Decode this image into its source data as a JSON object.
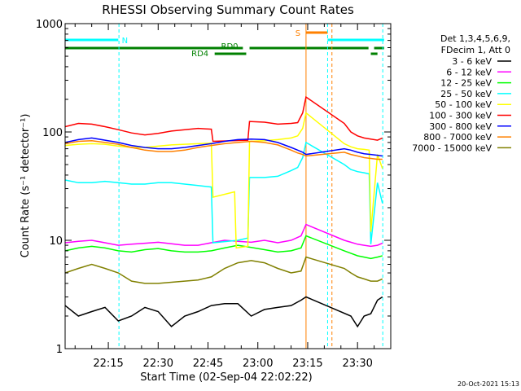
{
  "chart_data": {
    "type": "line",
    "title": "RHESSI Observing Summary Count Rates",
    "xlabel": "Start Time (02-Sep-04 22:02:22)",
    "ylabel": "Count Rate (s⁻¹ detector⁻¹)",
    "y_scale": "log",
    "ylim": [
      1,
      1000
    ],
    "xlim": [
      "22:02",
      "23:40"
    ],
    "y_ticks": [
      {
        "v": 1,
        "label": "1"
      },
      {
        "v": 10,
        "label": "10"
      },
      {
        "v": 100,
        "label": "100"
      },
      {
        "v": 1000,
        "label": "1000"
      }
    ],
    "x_ticks": [
      {
        "v": 13,
        "label": "22:15"
      },
      {
        "v": 28,
        "label": "22:30"
      },
      {
        "v": 43,
        "label": "22:45"
      },
      {
        "v": 58,
        "label": "23:00"
      },
      {
        "v": 73,
        "label": "23:15"
      },
      {
        "v": 88,
        "label": "23:30"
      }
    ],
    "legend_header": [
      "Det 1,3,4,5,6,9,",
      "FDecim 1, Att 0"
    ],
    "legend_position": "right",
    "series": [
      {
        "name": "3 - 6 keV",
        "color": "#000000",
        "x": [
          0,
          4,
          8,
          12,
          16,
          20,
          24,
          28,
          32,
          36,
          40,
          44,
          48,
          52,
          56,
          60,
          64,
          68,
          71,
          72.5,
          86,
          88,
          90,
          92,
          94,
          95.5
        ],
        "y": [
          2.5,
          2.0,
          2.2,
          2.4,
          1.8,
          2.0,
          2.4,
          2.2,
          1.6,
          2.0,
          2.2,
          2.5,
          2.6,
          2.6,
          2.0,
          2.3,
          2.4,
          2.5,
          2.8,
          3.0,
          2.0,
          1.6,
          2.0,
          2.1,
          2.8,
          3.0
        ]
      },
      {
        "name": "6 - 12 keV",
        "color": "#ff00ff",
        "x": [
          0,
          4,
          8,
          12,
          16,
          20,
          24,
          28,
          32,
          36,
          40,
          44,
          48,
          52,
          56,
          60,
          64,
          68,
          71,
          72.5,
          84,
          86,
          88,
          90,
          92,
          94,
          95.5
        ],
        "y": [
          9.5,
          9.8,
          10,
          9.5,
          9.0,
          9.2,
          9.4,
          9.6,
          9.3,
          9.0,
          9.0,
          9.5,
          10,
          9.8,
          9.6,
          10,
          9.5,
          10,
          11,
          14,
          10,
          9.6,
          9.2,
          9.0,
          8.8,
          9.0,
          9.4
        ]
      },
      {
        "name": "12 - 25 keV",
        "color": "#00ff00",
        "x": [
          0,
          4,
          8,
          12,
          16,
          20,
          24,
          28,
          32,
          36,
          40,
          44,
          48,
          52,
          56,
          60,
          64,
          68,
          71,
          72.5,
          84,
          86,
          88,
          90,
          92,
          94,
          95.5
        ],
        "y": [
          8.0,
          8.5,
          8.8,
          8.5,
          8.0,
          7.8,
          8.2,
          8.4,
          8.0,
          7.8,
          7.8,
          8.0,
          8.5,
          9.0,
          8.6,
          8.2,
          7.8,
          8.0,
          8.5,
          11,
          8.0,
          7.6,
          7.2,
          7.0,
          6.8,
          7.0,
          7.2
        ]
      },
      {
        "name": "25 - 50 keV",
        "color": "#00ffff",
        "x": [
          0,
          4,
          8,
          12,
          16,
          20,
          24,
          28,
          32,
          36,
          40,
          44,
          44.5,
          52,
          55,
          55.5,
          60,
          64,
          68,
          70,
          71.5,
          72.5,
          84,
          86,
          88,
          90,
          91.5,
          92,
          94,
          95.5
        ],
        "y": [
          36,
          34,
          34,
          35,
          34,
          33,
          33,
          34,
          34,
          33,
          32,
          31,
          9.5,
          10,
          10.5,
          38,
          38,
          39,
          44,
          47,
          58,
          80,
          50,
          45,
          43,
          42,
          41,
          9.2,
          34,
          22
        ]
      },
      {
        "name": "50 - 100 keV",
        "color": "#ffff00",
        "x": [
          0,
          4,
          8,
          12,
          16,
          20,
          24,
          28,
          32,
          36,
          40,
          44,
          44.5,
          51,
          51.5,
          55,
          55.5,
          60,
          64,
          68,
          70,
          71.5,
          72.5,
          84,
          86,
          88,
          90,
          91.5,
          92,
          94,
          95.5
        ],
        "y": [
          75,
          77,
          78,
          77,
          74,
          72,
          72,
          74,
          76,
          77,
          78,
          79,
          25,
          28,
          8.5,
          8.8,
          82,
          83,
          85,
          88,
          92,
          108,
          150,
          78,
          73,
          70,
          69,
          68,
          12,
          62,
          46
        ]
      },
      {
        "name": "100 - 300 keV",
        "color": "#ff0000",
        "x": [
          0,
          4,
          8,
          12,
          16,
          20,
          24,
          28,
          32,
          36,
          40,
          44,
          44.5,
          55,
          55.5,
          60,
          64,
          68,
          70,
          71.5,
          72.5,
          84,
          86,
          88,
          90,
          92,
          94,
          95.5
        ],
        "y": [
          112,
          120,
          118,
          112,
          105,
          98,
          94,
          97,
          102,
          105,
          108,
          106,
          82,
          84,
          125,
          123,
          118,
          120,
          122,
          150,
          210,
          120,
          100,
          92,
          88,
          86,
          84,
          88
        ]
      },
      {
        "name": "300 - 800 keV",
        "color": "#0000ff",
        "x": [
          0,
          4,
          8,
          12,
          16,
          20,
          24,
          28,
          32,
          36,
          40,
          44,
          48,
          52,
          56,
          60,
          64,
          68,
          70,
          71.5,
          72.5,
          84,
          86,
          88,
          90,
          92,
          94,
          95.5
        ],
        "y": [
          80,
          85,
          88,
          84,
          80,
          75,
          72,
          70,
          70,
          72,
          75,
          78,
          82,
          85,
          86,
          85,
          80,
          72,
          68,
          65,
          62,
          70,
          68,
          65,
          63,
          62,
          61,
          60
        ]
      },
      {
        "name": "800 - 7000 keV",
        "color": "#ff8000",
        "x": [
          0,
          4,
          8,
          12,
          16,
          20,
          24,
          28,
          32,
          36,
          40,
          44,
          48,
          52,
          56,
          60,
          64,
          68,
          70,
          71.5,
          72.5,
          84,
          86,
          88,
          90,
          92,
          94,
          95.5
        ],
        "y": [
          78,
          82,
          83,
          80,
          77,
          72,
          68,
          66,
          66,
          68,
          72,
          75,
          78,
          80,
          82,
          80,
          76,
          68,
          64,
          62,
          60,
          65,
          62,
          60,
          58,
          57,
          56,
          56
        ]
      },
      {
        "name": "7000 - 15000 keV",
        "color": "#808000",
        "x": [
          0,
          4,
          8,
          12,
          16,
          20,
          24,
          28,
          32,
          36,
          40,
          44,
          48,
          52,
          56,
          60,
          64,
          68,
          71,
          72.5,
          84,
          86,
          88,
          90,
          92,
          94,
          95.5
        ],
        "y": [
          5.0,
          5.5,
          6.0,
          5.5,
          5.0,
          4.2,
          4.0,
          4.0,
          4.1,
          4.2,
          4.3,
          4.6,
          5.5,
          6.2,
          6.5,
          6.2,
          5.5,
          5.0,
          5.2,
          7.0,
          5.5,
          5.0,
          4.6,
          4.4,
          4.2,
          4.2,
          4.4
        ]
      }
    ],
    "state_bars": [
      {
        "label": "N",
        "color": "#00ffff",
        "level": 1,
        "segments": [
          [
            0,
            16
          ],
          [
            79,
            96
          ]
        ]
      },
      {
        "label": "S",
        "color": "#ff8000",
        "level": 2,
        "segments": [
          [
            72.5,
            79
          ]
        ]
      },
      {
        "label": "RD0",
        "color": "#008000",
        "level": 3,
        "segments": [
          [
            0,
            53.5
          ],
          [
            55.5,
            91.3
          ],
          [
            93,
            96
          ]
        ]
      },
      {
        "label": "RD4",
        "color": "#008000",
        "level": 4,
        "segments": [
          [
            45,
            54.5
          ],
          [
            92,
            94
          ]
        ]
      }
    ],
    "vlines": [
      {
        "x": 16.2,
        "color": "#00ffff",
        "style": "dashed"
      },
      {
        "x": 72.5,
        "color": "#ff8000",
        "style": "solid"
      },
      {
        "x": 79,
        "color": "#00ffff",
        "style": "dashed"
      },
      {
        "x": 80.3,
        "color": "#ff8000",
        "style": "dashed"
      },
      {
        "x": 95.6,
        "color": "#00ffff",
        "style": "dashed"
      }
    ],
    "timestamp": "20-Oct-2021 15:13"
  }
}
